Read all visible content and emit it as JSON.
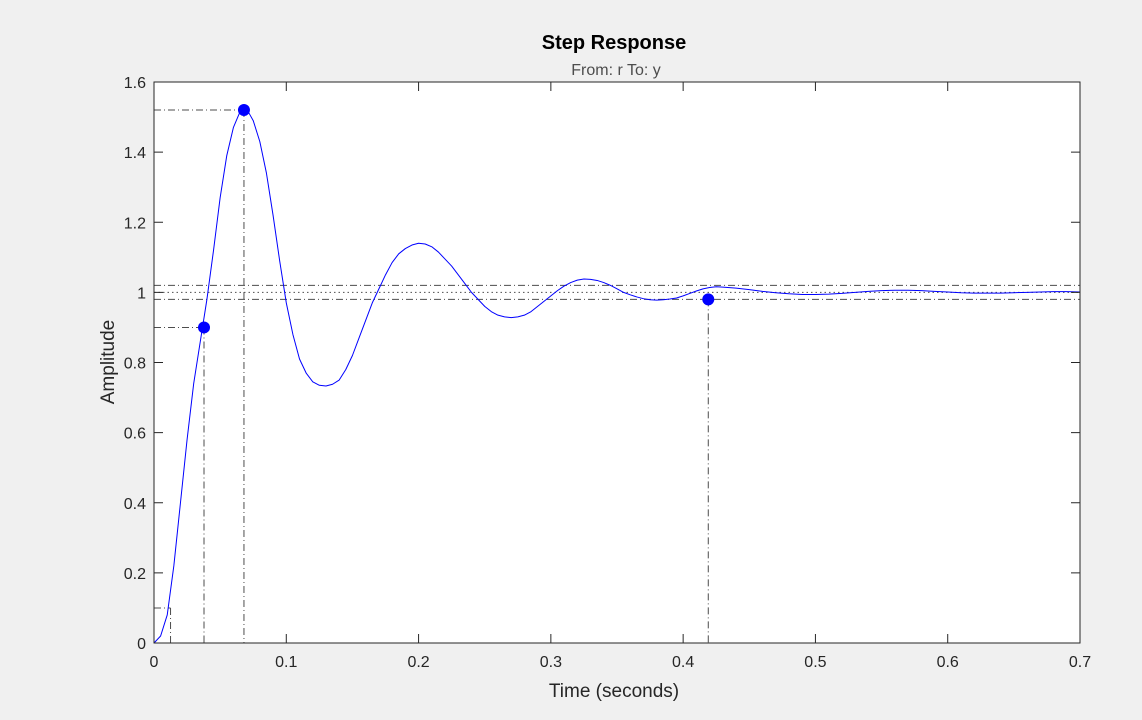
{
  "figure": {
    "background": "#f0f0f0",
    "axes_background": "#ffffff"
  },
  "chart_data": {
    "type": "line",
    "title": "Step Response",
    "subtitle": "From: r  To: y",
    "xlabel": "Time (seconds)",
    "ylabel": "Amplitude",
    "xlim": [
      0,
      0.7
    ],
    "ylim": [
      0,
      1.6
    ],
    "x_ticks": [
      0,
      0.1,
      0.2,
      0.3,
      0.4,
      0.5,
      0.6,
      0.7
    ],
    "x_tick_labels": [
      "0",
      "0.1",
      "0.2",
      "0.3",
      "0.4",
      "0.5",
      "0.6",
      "0.7"
    ],
    "y_ticks": [
      0,
      0.2,
      0.4,
      0.6,
      0.8,
      1,
      1.2,
      1.4,
      1.6
    ],
    "y_tick_labels": [
      "0",
      "0.2",
      "0.4",
      "0.6",
      "0.8",
      "1",
      "1.2",
      "1.4",
      "1.6"
    ],
    "grid": false,
    "line_color": "#0000ff",
    "series": [
      {
        "x": [
          0,
          0.005,
          0.01,
          0.015,
          0.02,
          0.025,
          0.03,
          0.035,
          0.04,
          0.045,
          0.05,
          0.055,
          0.06,
          0.065,
          0.068,
          0.072,
          0.075,
          0.08,
          0.085,
          0.09,
          0.095,
          0.1,
          0.105,
          0.11,
          0.115,
          0.12,
          0.125,
          0.13,
          0.135,
          0.14,
          0.145,
          0.15,
          0.155,
          0.16,
          0.165,
          0.17,
          0.175,
          0.18,
          0.185,
          0.19,
          0.195,
          0.2,
          0.205,
          0.21,
          0.215,
          0.22,
          0.225,
          0.23,
          0.235,
          0.24,
          0.245,
          0.25,
          0.255,
          0.26,
          0.265,
          0.27,
          0.275,
          0.28,
          0.285,
          0.29,
          0.295,
          0.3,
          0.305,
          0.31,
          0.315,
          0.32,
          0.325,
          0.33,
          0.335,
          0.34,
          0.345,
          0.35,
          0.355,
          0.36,
          0.365,
          0.37,
          0.375,
          0.38,
          0.385,
          0.39,
          0.395,
          0.4,
          0.405,
          0.41,
          0.415,
          0.42,
          0.425,
          0.43,
          0.44,
          0.45,
          0.46,
          0.47,
          0.48,
          0.49,
          0.5,
          0.51,
          0.52,
          0.53,
          0.54,
          0.55,
          0.56,
          0.57,
          0.58,
          0.59,
          0.6,
          0.61,
          0.62,
          0.63,
          0.64,
          0.65,
          0.66,
          0.67,
          0.68,
          0.69,
          0.7
        ],
        "values": [
          0,
          0.02,
          0.08,
          0.22,
          0.4,
          0.58,
          0.74,
          0.86,
          0.98,
          1.12,
          1.27,
          1.39,
          1.47,
          1.515,
          1.52,
          1.51,
          1.49,
          1.43,
          1.34,
          1.22,
          1.09,
          0.97,
          0.88,
          0.81,
          0.77,
          0.745,
          0.735,
          0.733,
          0.738,
          0.75,
          0.78,
          0.82,
          0.87,
          0.92,
          0.97,
          1.01,
          1.05,
          1.085,
          1.11,
          1.125,
          1.135,
          1.14,
          1.138,
          1.13,
          1.115,
          1.095,
          1.075,
          1.05,
          1.025,
          1.0,
          0.98,
          0.96,
          0.945,
          0.935,
          0.93,
          0.928,
          0.93,
          0.935,
          0.945,
          0.96,
          0.975,
          0.99,
          1.005,
          1.018,
          1.028,
          1.035,
          1.038,
          1.037,
          1.034,
          1.028,
          1.02,
          1.01,
          1.0,
          0.993,
          0.987,
          0.982,
          0.979,
          0.978,
          0.979,
          0.981,
          0.984,
          0.99,
          0.997,
          1.004,
          1.01,
          1.014,
          1.016,
          1.015,
          1.012,
          1.008,
          1.003,
          0.999,
          0.996,
          0.994,
          0.994,
          0.995,
          0.997,
          1.0,
          1.003,
          1.005,
          1.006,
          1.006,
          1.005,
          1.003,
          1.001,
          0.999,
          0.998,
          0.998,
          0.998,
          0.999,
          1.0,
          1.001,
          1.002,
          1.002,
          1.001
        ]
      }
    ],
    "final_value": 1,
    "settling_band": [
      0.98,
      1.02
    ],
    "characteristic_points": [
      {
        "x": 0.0378,
        "y": 0.9
      },
      {
        "x": 0.068,
        "y": 1.52
      },
      {
        "x": 0.419,
        "y": 0.98
      }
    ],
    "rise_start": {
      "x": 0.0125,
      "y": 0.1
    }
  }
}
